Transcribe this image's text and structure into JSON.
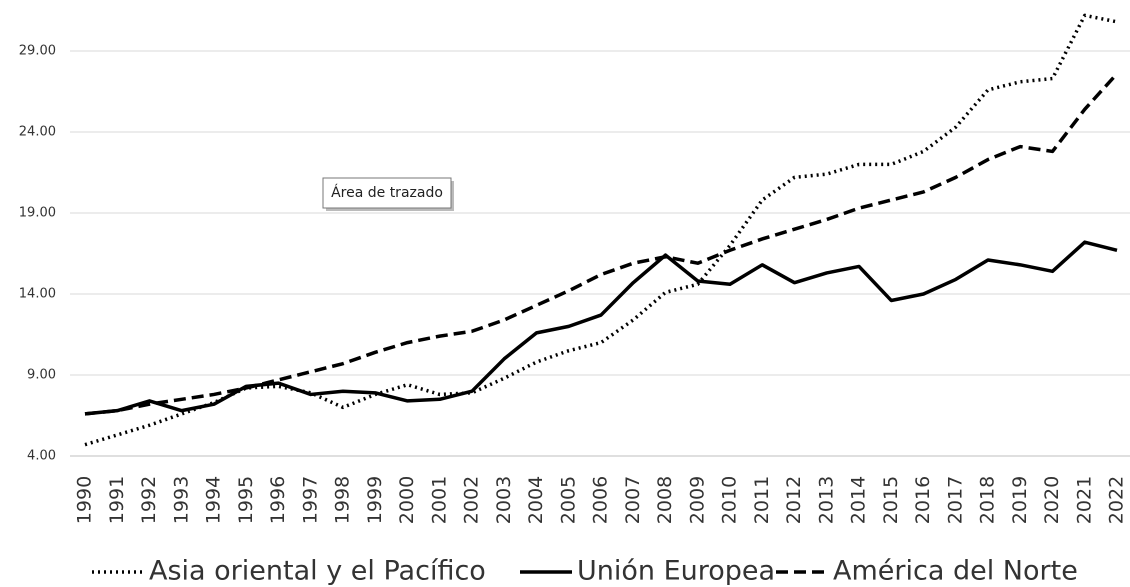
{
  "chart_data": {
    "type": "line",
    "annotation": "Área de trazado",
    "categories": [
      "1990",
      "1991",
      "1992",
      "1993",
      "1994",
      "1995",
      "1996",
      "1997",
      "1998",
      "1999",
      "2000",
      "2001",
      "2002",
      "2003",
      "2004",
      "2005",
      "2006",
      "2007",
      "2008",
      "2009",
      "2010",
      "2011",
      "2012",
      "2013",
      "2014",
      "2015",
      "2016",
      "2017",
      "2018",
      "2019",
      "2020",
      "2021",
      "2022"
    ],
    "series": [
      {
        "name": "Asia oriental y el Pacífico",
        "color": "#000000",
        "line_style": "dotted",
        "values": [
          4.7,
          5.3,
          5.9,
          6.6,
          7.3,
          8.2,
          8.3,
          7.9,
          7.0,
          7.8,
          8.4,
          7.8,
          7.9,
          8.8,
          9.8,
          10.5,
          11.0,
          12.4,
          14.1,
          14.6,
          17.0,
          19.8,
          21.2,
          21.4,
          22.0,
          22.0,
          22.8,
          24.3,
          26.6,
          27.1,
          27.3,
          31.2,
          30.8
        ]
      },
      {
        "name": "Unión Europea",
        "color": "#000000",
        "line_style": "solid",
        "values": [
          6.6,
          6.8,
          7.4,
          6.8,
          7.2,
          8.3,
          8.5,
          7.8,
          8.0,
          7.9,
          7.4,
          7.5,
          8.0,
          10.0,
          11.6,
          12.0,
          12.7,
          14.7,
          16.4,
          14.8,
          14.6,
          15.8,
          14.7,
          15.3,
          15.7,
          13.6,
          14.0,
          14.9,
          16.1,
          15.8,
          15.4,
          17.2,
          16.7
        ]
      },
      {
        "name": "América del Norte",
        "color": "#000000",
        "line_style": "dashed",
        "values": [
          6.6,
          6.8,
          7.2,
          7.5,
          7.8,
          8.2,
          8.7,
          9.2,
          9.7,
          10.4,
          11.0,
          11.4,
          11.7,
          12.4,
          13.3,
          14.2,
          15.2,
          15.9,
          16.3,
          15.9,
          16.7,
          17.4,
          18.0,
          18.6,
          19.3,
          19.8,
          20.3,
          21.2,
          22.3,
          23.1,
          22.8,
          25.4,
          27.6
        ]
      }
    ],
    "ylim": [
      4,
      32
    ],
    "yticks": [
      {
        "value": 4,
        "label": "4.00"
      },
      {
        "value": 9,
        "label": "9.00"
      },
      {
        "value": 14,
        "label": "14.00"
      },
      {
        "value": 19,
        "label": "19.00"
      },
      {
        "value": 24,
        "label": "24.00"
      },
      {
        "value": 29,
        "label": "29.00"
      }
    ],
    "grid": true,
    "legend": "bottom"
  }
}
